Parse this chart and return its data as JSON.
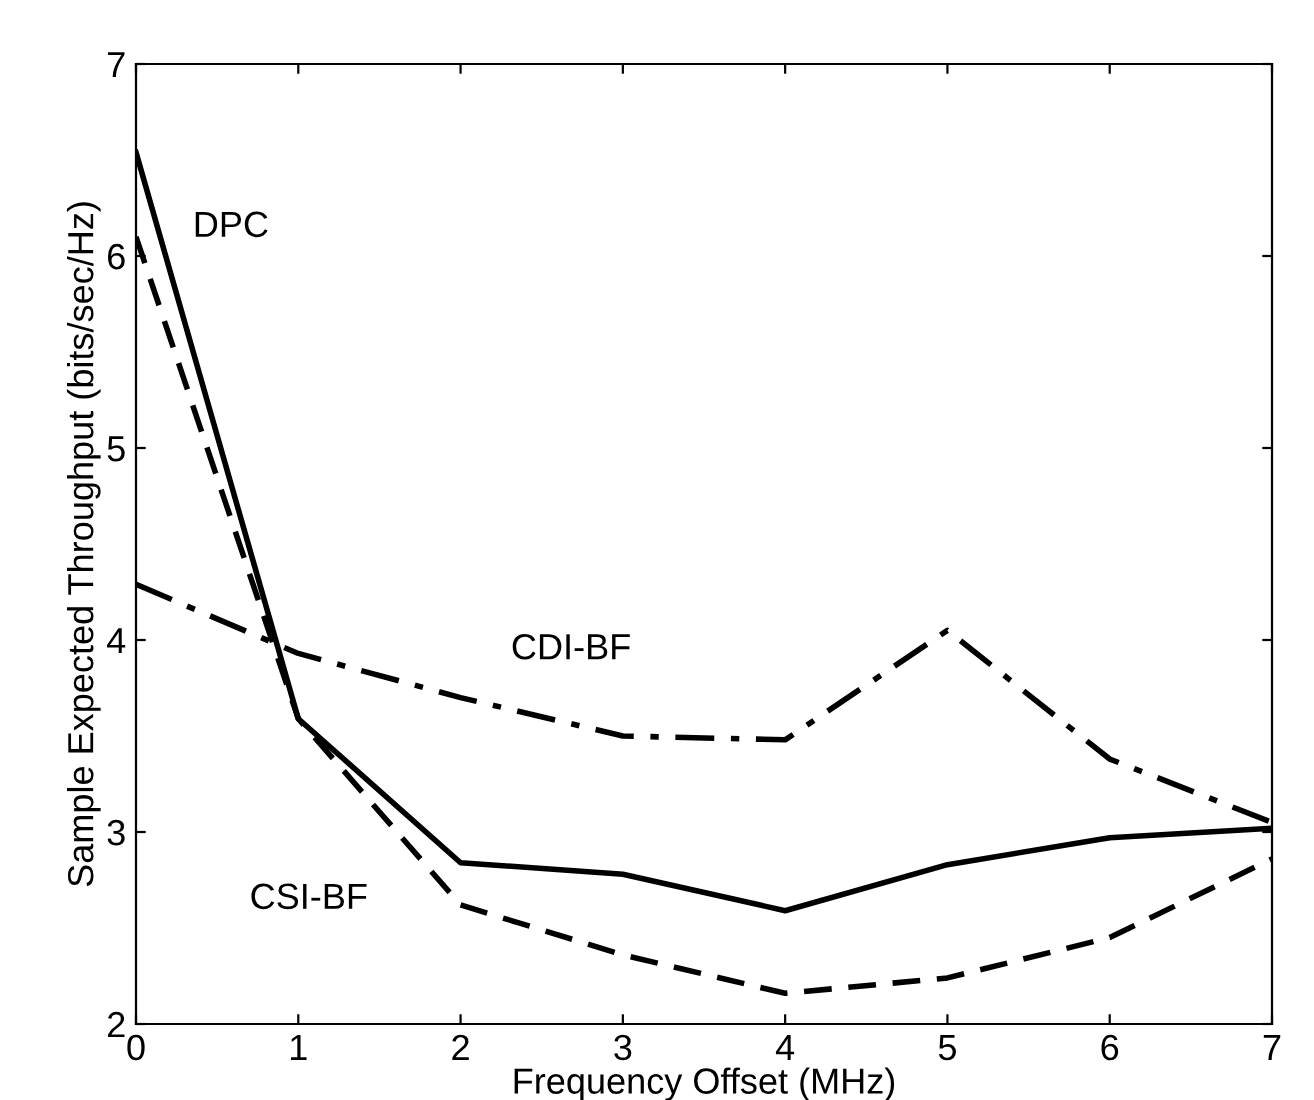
{
  "chart_data": {
    "type": "line",
    "xlabel": "Frequency Offset (MHz)",
    "ylabel": "Sample Expected Throughput (bits/sec/Hz)",
    "x": [
      0,
      1,
      2,
      3,
      4,
      5,
      6,
      7
    ],
    "series": [
      {
        "name": "DPC",
        "color": "#000000",
        "line_style": "solid",
        "values": [
          6.54,
          3.59,
          2.84,
          2.78,
          2.59,
          2.83,
          2.97,
          3.02
        ]
      },
      {
        "name": "CSI-BF",
        "color": "#000000",
        "line_style": "dashed",
        "values": [
          6.1,
          3.59,
          2.62,
          2.36,
          2.16,
          2.24,
          2.45,
          2.86
        ]
      },
      {
        "name": "CDI-BF",
        "color": "#000000",
        "line_style": "dashdot",
        "values": [
          4.29,
          3.93,
          3.7,
          3.5,
          3.48,
          4.05,
          3.38,
          3.05
        ]
      }
    ],
    "xlim": [
      0,
      7
    ],
    "ylim": [
      2,
      7
    ],
    "xticks": [
      0,
      1,
      2,
      3,
      4,
      5,
      6,
      7
    ],
    "yticks": [
      2,
      3,
      4,
      5,
      6,
      7
    ],
    "grid": false,
    "legend": false,
    "marker": "none"
  }
}
